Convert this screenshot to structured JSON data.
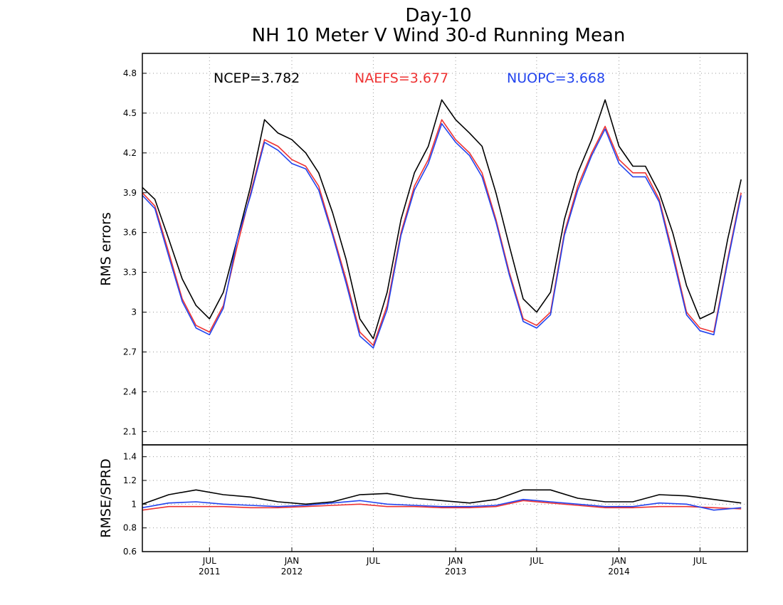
{
  "title_line1": "Day-10",
  "title_line2": "NH 10 Meter V Wind 30-d Running Mean",
  "chart_data": [
    {
      "type": "line",
      "ylabel": "RMS errors",
      "ylim": [
        2.0,
        4.95
      ],
      "yticks": [
        "2.1",
        "2.4",
        "2.7",
        "3",
        "3.3",
        "3.6",
        "3.9",
        "4.2",
        "4.5",
        "4.8"
      ],
      "grid": true,
      "legend_placement": "top",
      "x_start": "2011-02-01",
      "x_end": "2014-10-15",
      "x": [
        "2011-02-01",
        "2011-03-01",
        "2011-04-01",
        "2011-05-01",
        "2011-06-01",
        "2011-07-01",
        "2011-08-01",
        "2011-09-01",
        "2011-10-01",
        "2011-11-01",
        "2011-12-01",
        "2012-01-01",
        "2012-02-01",
        "2012-03-01",
        "2012-04-01",
        "2012-05-01",
        "2012-06-01",
        "2012-07-01",
        "2012-08-01",
        "2012-09-01",
        "2012-10-01",
        "2012-11-01",
        "2012-12-01",
        "2013-01-01",
        "2013-02-01",
        "2013-03-01",
        "2013-04-01",
        "2013-05-01",
        "2013-06-01",
        "2013-07-01",
        "2013-08-01",
        "2013-09-01",
        "2013-10-01",
        "2013-11-01",
        "2013-12-01",
        "2014-01-01",
        "2014-02-01",
        "2014-03-01",
        "2014-04-01",
        "2014-05-01",
        "2014-06-01",
        "2014-07-01",
        "2014-08-01",
        "2014-09-01",
        "2014-10-01"
      ],
      "series": [
        {
          "name": "NCEP",
          "label": "NCEP=3.782",
          "color": "#000000",
          "values": [
            3.94,
            3.85,
            3.55,
            3.25,
            3.05,
            2.95,
            3.15,
            3.55,
            3.95,
            4.45,
            4.35,
            4.3,
            4.2,
            4.05,
            3.75,
            3.4,
            2.95,
            2.8,
            3.15,
            3.7,
            4.05,
            4.25,
            4.6,
            4.45,
            4.35,
            4.25,
            3.9,
            3.5,
            3.1,
            3.0,
            3.15,
            3.7,
            4.05,
            4.3,
            4.6,
            4.25,
            4.1,
            4.1,
            3.9,
            3.6,
            3.2,
            2.95,
            3.0,
            3.55,
            4.0
          ]
        },
        {
          "name": "NAEFS",
          "label": "NAEFS=3.677",
          "color": "#ee3333",
          "values": [
            3.9,
            3.8,
            3.45,
            3.1,
            2.9,
            2.85,
            3.05,
            3.5,
            3.9,
            4.3,
            4.25,
            4.15,
            4.1,
            3.95,
            3.6,
            3.25,
            2.85,
            2.75,
            3.05,
            3.6,
            3.95,
            4.15,
            4.45,
            4.3,
            4.2,
            4.05,
            3.7,
            3.3,
            2.95,
            2.9,
            3.0,
            3.6,
            3.95,
            4.2,
            4.4,
            4.15,
            4.05,
            4.05,
            3.85,
            3.45,
            3.0,
            2.88,
            2.85,
            3.4,
            3.9
          ]
        },
        {
          "name": "NUOPC",
          "label": "NUOPC=3.668",
          "color": "#2244ee",
          "values": [
            3.88,
            3.78,
            3.42,
            3.08,
            2.88,
            2.83,
            3.03,
            3.55,
            3.88,
            4.28,
            4.22,
            4.12,
            4.08,
            3.92,
            3.58,
            3.22,
            2.82,
            2.73,
            3.02,
            3.58,
            3.92,
            4.12,
            4.42,
            4.28,
            4.18,
            4.02,
            3.68,
            3.28,
            2.93,
            2.88,
            2.98,
            3.58,
            3.92,
            4.18,
            4.38,
            4.12,
            4.02,
            4.02,
            3.83,
            3.42,
            2.98,
            2.86,
            2.83,
            3.38,
            3.88
          ]
        }
      ]
    },
    {
      "type": "line",
      "ylabel": "RMSE/SPRD",
      "ylim": [
        0.6,
        1.5
      ],
      "yticks": [
        "0.6",
        "0.8",
        "1",
        "1.2",
        "1.4"
      ],
      "grid": true,
      "x_start": "2011-02-01",
      "x_end": "2014-10-15",
      "xticks": [
        {
          "date": "2011-07-01",
          "month": "JUL",
          "year": "2011"
        },
        {
          "date": "2012-01-01",
          "month": "JAN",
          "year": "2012"
        },
        {
          "date": "2012-07-01",
          "month": "JUL",
          "year": ""
        },
        {
          "date": "2013-01-01",
          "month": "JAN",
          "year": "2013"
        },
        {
          "date": "2013-07-01",
          "month": "JUL",
          "year": ""
        },
        {
          "date": "2014-01-01",
          "month": "JAN",
          "year": "2014"
        },
        {
          "date": "2014-07-01",
          "month": "JUL",
          "year": ""
        }
      ],
      "x": [
        "2011-02-01",
        "2011-04-01",
        "2011-06-01",
        "2011-08-01",
        "2011-10-01",
        "2011-12-01",
        "2012-02-01",
        "2012-04-01",
        "2012-06-01",
        "2012-08-01",
        "2012-10-01",
        "2012-12-01",
        "2013-02-01",
        "2013-04-01",
        "2013-06-01",
        "2013-08-01",
        "2013-10-01",
        "2013-12-01",
        "2014-02-01",
        "2014-04-01",
        "2014-06-01",
        "2014-08-01",
        "2014-10-01"
      ],
      "series": [
        {
          "name": "NCEP",
          "color": "#000000",
          "values": [
            1.0,
            1.08,
            1.12,
            1.08,
            1.06,
            1.02,
            1.0,
            1.02,
            1.08,
            1.09,
            1.05,
            1.03,
            1.01,
            1.04,
            1.12,
            1.12,
            1.05,
            1.02,
            1.02,
            1.08,
            1.07,
            1.04,
            1.01
          ]
        },
        {
          "name": "NAEFS",
          "color": "#ee3333",
          "values": [
            0.95,
            0.98,
            0.98,
            0.98,
            0.97,
            0.97,
            0.98,
            0.99,
            1.0,
            0.98,
            0.98,
            0.97,
            0.97,
            0.98,
            1.03,
            1.01,
            0.99,
            0.97,
            0.97,
            0.98,
            0.98,
            0.97,
            0.96
          ]
        },
        {
          "name": "NUOPC",
          "color": "#2244ee",
          "values": [
            0.97,
            1.01,
            1.02,
            1.0,
            0.99,
            0.98,
            0.99,
            1.01,
            1.03,
            1.0,
            0.99,
            0.98,
            0.98,
            0.99,
            1.04,
            1.02,
            1.0,
            0.98,
            0.98,
            1.01,
            1.0,
            0.95,
            0.97
          ]
        }
      ]
    }
  ]
}
